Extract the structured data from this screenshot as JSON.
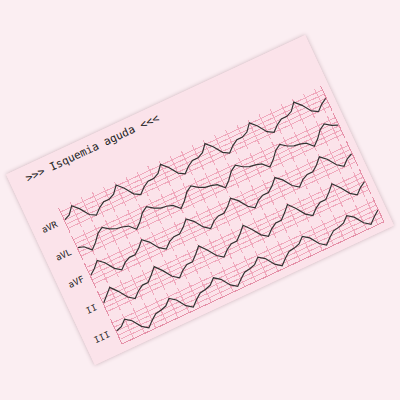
{
  "chart_data": {
    "type": "line",
    "title": ">>> Isquemia aguda <<<",
    "xlim": [
      0,
      47
    ],
    "ylim": [
      -1.5,
      1.5
    ],
    "tick_labels": false,
    "grid": true,
    "series": [
      {
        "name": "aVR",
        "color": "#333333",
        "values": [
          0,
          0.3,
          1.1,
          0.4,
          -0.6,
          -1.0,
          -0.4,
          0.0,
          0,
          0.3,
          1.1,
          0.4,
          -0.6,
          -1.0,
          -0.4,
          0.0,
          0,
          0.3,
          1.1,
          0.4,
          -0.6,
          -1.0,
          -0.4,
          0.0,
          0,
          0.3,
          1.1,
          0.4,
          -0.6,
          -1.0,
          -0.4,
          0.0,
          0,
          0.3,
          1.1,
          0.4,
          -0.6,
          -1.0,
          -0.4,
          0.0,
          0,
          0.3,
          1.1,
          0.4,
          -0.6,
          -1.0,
          -0.4,
          0.0
        ]
      },
      {
        "name": "aVL",
        "color": "#333333",
        "values": [
          0,
          -0.2,
          -0.9,
          -0.3,
          0.5,
          0.9,
          0.4,
          0.1,
          0,
          -0.2,
          -0.9,
          -0.3,
          0.5,
          0.9,
          0.4,
          0.1,
          0,
          -0.2,
          -0.9,
          -0.3,
          0.5,
          0.9,
          0.4,
          0.1,
          0,
          -0.2,
          -0.9,
          -0.3,
          0.5,
          0.9,
          0.4,
          0.1,
          0,
          -0.2,
          -0.9,
          -0.3,
          0.5,
          0.9,
          0.4,
          0.1,
          0,
          -0.2,
          -0.9,
          -0.3,
          0.5,
          0.9,
          0.4,
          0.1
        ]
      },
      {
        "name": "aVF",
        "color": "#333333",
        "values": [
          0,
          0.5,
          1.2,
          0.6,
          -0.4,
          -0.9,
          -0.3,
          0.0,
          0,
          0.5,
          1.2,
          0.6,
          -0.4,
          -0.9,
          -0.3,
          0.0,
          0,
          0.5,
          1.2,
          0.6,
          -0.4,
          -0.9,
          -0.3,
          0.0,
          0,
          0.5,
          1.2,
          0.6,
          -0.4,
          -0.9,
          -0.3,
          0.0,
          0,
          0.5,
          1.2,
          0.6,
          -0.4,
          -0.9,
          -0.3,
          0.0,
          0,
          0.5,
          1.2,
          0.6,
          -0.4,
          -0.9,
          -0.3,
          0.0
        ]
      },
      {
        "name": "II",
        "color": "#333333",
        "values": [
          0,
          0.6,
          1.3,
          0.5,
          -0.5,
          -1.0,
          -0.4,
          0.0,
          0,
          0.6,
          1.3,
          0.5,
          -0.5,
          -1.0,
          -0.4,
          0.0,
          0,
          0.6,
          1.3,
          0.5,
          -0.5,
          -1.0,
          -0.4,
          0.0,
          0,
          0.6,
          1.3,
          0.5,
          -0.5,
          -1.0,
          -0.4,
          0.0,
          0,
          0.6,
          1.3,
          0.5,
          -0.5,
          -1.0,
          -0.4,
          0.0,
          0,
          0.6,
          1.3,
          0.5,
          -0.5,
          -1.0,
          -0.4,
          0.0
        ]
      },
      {
        "name": "III",
        "color": "#333333",
        "values": [
          0,
          0.2,
          0.8,
          0.3,
          -0.7,
          -1.2,
          -0.6,
          -0.1,
          0,
          0.2,
          0.8,
          0.3,
          -0.7,
          -1.2,
          -0.6,
          -0.1,
          0,
          0.2,
          0.8,
          0.3,
          -0.7,
          -1.2,
          -0.6,
          -0.1,
          0,
          0.2,
          0.8,
          0.3,
          -0.7,
          -1.2,
          -0.6,
          -0.1,
          0,
          0.2,
          0.8,
          0.3,
          -0.7,
          -1.2,
          -0.6,
          -0.1,
          0,
          0.2,
          0.8,
          0.3,
          -0.7,
          -1.2,
          -0.6,
          -0.1
        ]
      }
    ]
  }
}
